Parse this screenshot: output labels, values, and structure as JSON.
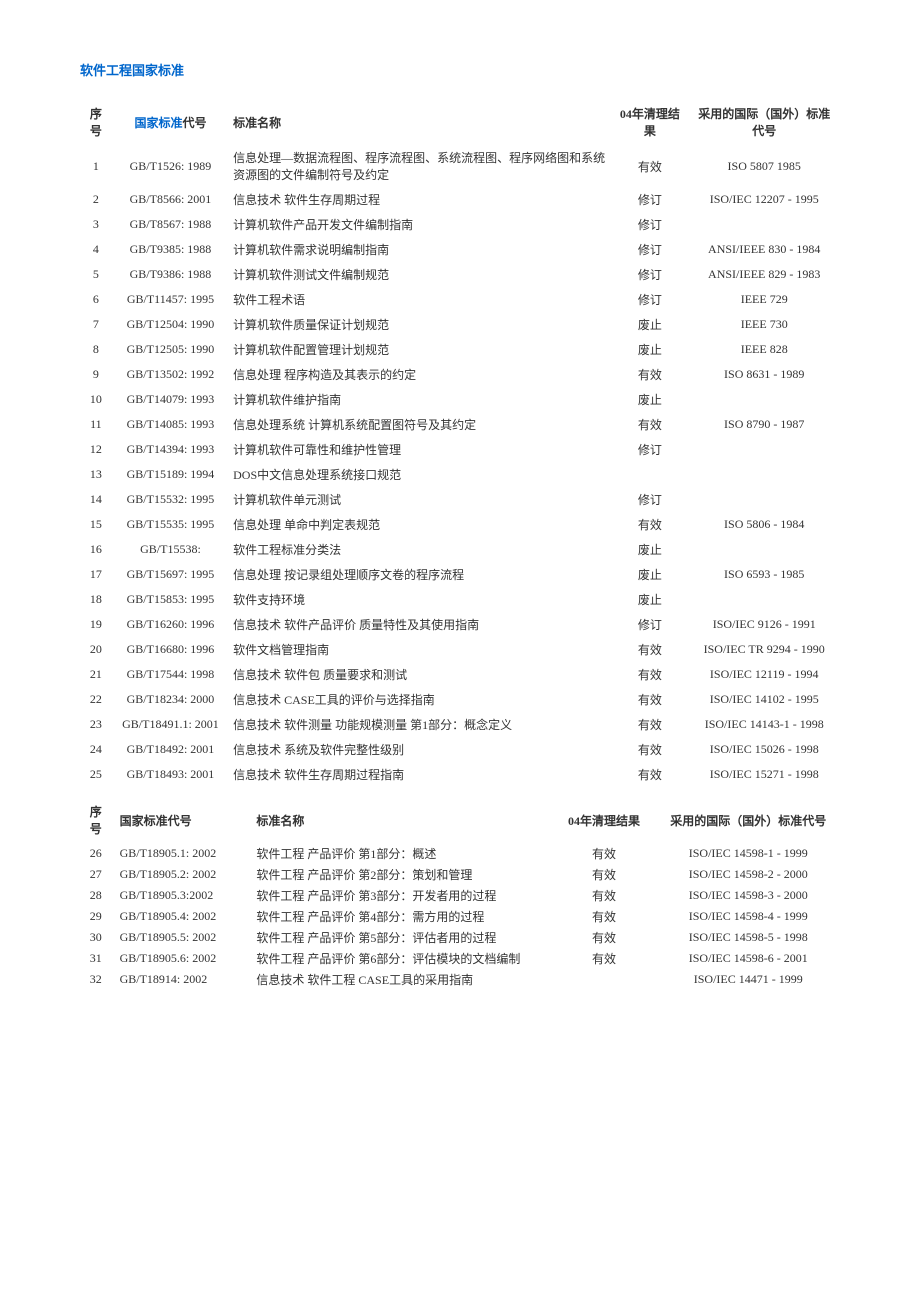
{
  "title": "软件工程国家标准",
  "table1_headers": {
    "seq": "序号",
    "code_prefix": "国家标准",
    "code_suffix": "代号",
    "name": "标准名称",
    "result": "04年清理结果",
    "intl": "采用的国际（国外）标准代号"
  },
  "table1_rows": [
    {
      "seq": "1",
      "code": "GB/T1526: 1989",
      "name": "信息处理—数据流程图、程序流程图、系统流程图、程序网络图和系统资源图的文件编制符号及约定",
      "result": "有效",
      "intl": "ISO 5807 1985"
    },
    {
      "seq": "2",
      "code": "GB/T8566: 2001",
      "name": "信息技术 软件生存周期过程",
      "result": "修订",
      "intl": "ISO/IEC 12207 - 1995"
    },
    {
      "seq": "3",
      "code": "GB/T8567: 1988",
      "name": "计算机软件产品开发文件编制指南",
      "result": "修订",
      "intl": ""
    },
    {
      "seq": "4",
      "code": "GB/T9385: 1988",
      "name": "计算机软件需求说明编制指南",
      "result": "修订",
      "intl": "ANSI/IEEE 830 - 1984"
    },
    {
      "seq": "5",
      "code": "GB/T9386: 1988",
      "name": "计算机软件测试文件编制规范",
      "result": "修订",
      "intl": "ANSI/IEEE 829 - 1983"
    },
    {
      "seq": "6",
      "code": "GB/T11457: 1995",
      "name": "软件工程术语",
      "result": "修订",
      "intl": "IEEE 729"
    },
    {
      "seq": "7",
      "code": "GB/T12504: 1990",
      "name": "计算机软件质量保证计划规范",
      "result": "废止",
      "intl": "IEEE 730"
    },
    {
      "seq": "8",
      "code": "GB/T12505: 1990",
      "name": "计算机软件配置管理计划规范",
      "result": "废止",
      "intl": "IEEE 828"
    },
    {
      "seq": "9",
      "code": "GB/T13502: 1992",
      "name": "信息处理 程序构造及其表示的约定",
      "result": "有效",
      "intl": "ISO 8631 - 1989"
    },
    {
      "seq": "10",
      "code": "GB/T14079: 1993",
      "name": "计算机软件维护指南",
      "result": "废止",
      "intl": ""
    },
    {
      "seq": "11",
      "code": "GB/T14085: 1993",
      "name": "信息处理系统 计算机系统配置图符号及其约定",
      "result": "有效",
      "intl": "ISO 8790 - 1987"
    },
    {
      "seq": "12",
      "code": "GB/T14394: 1993",
      "name": "计算机软件可靠性和维护性管理",
      "result": "修订",
      "intl": ""
    },
    {
      "seq": "13",
      "code": "GB/T15189: 1994",
      "name": "DOS中文信息处理系统接口规范",
      "result": "",
      "intl": ""
    },
    {
      "seq": "14",
      "code": "GB/T15532: 1995",
      "name": "计算机软件单元测试",
      "result": "修订",
      "intl": ""
    },
    {
      "seq": "15",
      "code": "GB/T15535: 1995",
      "name": "信息处理 单命中判定表规范",
      "result": "有效",
      "intl": "ISO 5806 - 1984"
    },
    {
      "seq": "16",
      "code": "GB/T15538:",
      "name": "软件工程标准分类法",
      "result": "废止",
      "intl": ""
    },
    {
      "seq": "17",
      "code": "GB/T15697: 1995",
      "name": "信息处理 按记录组处理顺序文卷的程序流程",
      "result": "废止",
      "intl": "ISO 6593 - 1985"
    },
    {
      "seq": "18",
      "code": "GB/T15853: 1995",
      "name": "软件支持环境",
      "result": "废止",
      "intl": ""
    },
    {
      "seq": "19",
      "code": "GB/T16260: 1996",
      "name": "信息技术 软件产品评价 质量特性及其使用指南",
      "result": "修订",
      "intl": "ISO/IEC 9126 - 1991"
    },
    {
      "seq": "20",
      "code": "GB/T16680: 1996",
      "name": "软件文档管理指南",
      "result": "有效",
      "intl": "ISO/IEC TR 9294 - 1990"
    },
    {
      "seq": "21",
      "code": "GB/T17544: 1998",
      "name": "信息技术 软件包 质量要求和测试",
      "result": "有效",
      "intl": "ISO/IEC 12119 - 1994"
    },
    {
      "seq": "22",
      "code": "GB/T18234: 2000",
      "name": "信息技术 CASE工具的评价与选择指南",
      "result": "有效",
      "intl": "ISO/IEC 14102 - 1995"
    },
    {
      "seq": "23",
      "code": "GB/T18491.1: 2001",
      "name": "信息技术 软件测量 功能规模测量 第1部分：概念定义",
      "result": "有效",
      "intl": "ISO/IEC 14143-1 - 1998"
    },
    {
      "seq": "24",
      "code": "GB/T18492: 2001",
      "name": "信息技术 系统及软件完整性级别",
      "result": "有效",
      "intl": "ISO/IEC 15026 - 1998"
    },
    {
      "seq": "25",
      "code": "GB/T18493: 2001",
      "name": "信息技术 软件生存周期过程指南",
      "result": "有效",
      "intl": "ISO/IEC 15271 - 1998"
    }
  ],
  "table2_headers": {
    "seq": "序号",
    "code": "国家标准代号",
    "name": "标准名称",
    "result": "04年清理结果",
    "intl": "采用的国际（国外）标准代号"
  },
  "table2_rows": [
    {
      "seq": "26",
      "code": "GB/T18905.1: 2002",
      "name": "软件工程 产品评价 第1部分：概述",
      "result": "有效",
      "intl": "ISO/IEC 14598-1 - 1999"
    },
    {
      "seq": "27",
      "code": "GB/T18905.2: 2002",
      "name": "软件工程 产品评价 第2部分：策划和管理",
      "result": "有效",
      "intl": "ISO/IEC 14598-2 - 2000"
    },
    {
      "seq": "28",
      "code": "GB/T18905.3:2002",
      "name": "软件工程 产品评价 第3部分：开发者用的过程",
      "result": "有效",
      "intl": "ISO/IEC 14598-3 - 2000"
    },
    {
      "seq": "29",
      "code": "GB/T18905.4: 2002",
      "name": "软件工程 产品评价 第4部分：需方用的过程",
      "result": "有效",
      "intl": "ISO/IEC 14598-4 - 1999"
    },
    {
      "seq": "30",
      "code": "GB/T18905.5: 2002",
      "name": "软件工程 产品评价 第5部分：评估者用的过程",
      "result": "有效",
      "intl": "ISO/IEC 14598-5 - 1998"
    },
    {
      "seq": "31",
      "code": "GB/T18905.6: 2002",
      "name": "软件工程 产品评价 第6部分：评估模块的文档编制",
      "result": "有效",
      "intl": "ISO/IEC 14598-6 - 2001"
    },
    {
      "seq": "32",
      "code": "GB/T18914: 2002",
      "name": "信息技术 软件工程 CASE工具的采用指南",
      "result": "",
      "intl": "ISO/IEC 14471 - 1999"
    }
  ]
}
